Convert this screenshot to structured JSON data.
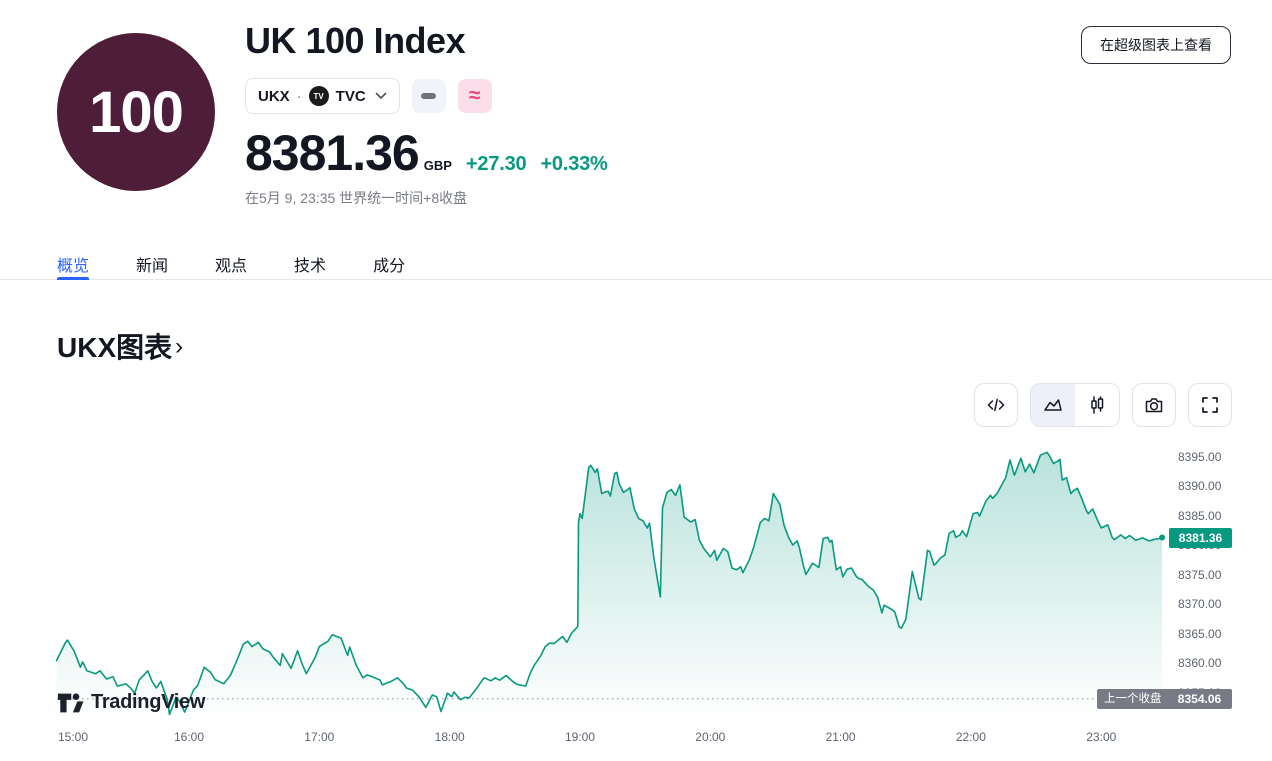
{
  "header": {
    "logo_text": "100",
    "title": "UK 100 Index",
    "symbol": {
      "name": "UKX",
      "dot": "·",
      "exchange_logo": "TV",
      "exchange": "TVC"
    },
    "approx_label": "≈",
    "price": "8381.36",
    "currency": "GBP",
    "change_abs": "+27.30",
    "change_pct": "+0.33%",
    "close_note": "在5月 9, 23:35 世界统一时间+8收盘",
    "superchart_label": "在超级图表上查看"
  },
  "tabs": [
    {
      "label": "概览",
      "active": true
    },
    {
      "label": "新闻",
      "active": false
    },
    {
      "label": "观点",
      "active": false
    },
    {
      "label": "技术",
      "active": false
    },
    {
      "label": "成分",
      "active": false
    }
  ],
  "section": {
    "heading": "UKX图表",
    "chevron": "›"
  },
  "toolbar": {
    "icons": [
      "code-view",
      "area-chart",
      "candlestick-chart",
      "snapshot-camera",
      "fullscreen"
    ]
  },
  "watermark": {
    "label": "TradingView"
  },
  "colors": {
    "green": "#089981",
    "blue": "#2962ff",
    "text_dark": "#131722",
    "text_gray": "#787b86",
    "badge_gray": "#787b86",
    "logo_maroon": "#4e1d3a",
    "chip_gray_bg": "#f0f3fa",
    "chip_pink_bg": "#fbdee9",
    "chip_pink": "#ef437e",
    "border_light": "#e0e3eb"
  },
  "chart_data": {
    "type": "area",
    "symbol": "UKX",
    "title": "UKX图表",
    "x_axis_labels": [
      "15:00",
      "16:00",
      "17:00",
      "18:00",
      "19:00",
      "20:00",
      "21:00",
      "22:00",
      "23:00"
    ],
    "y_axis_labels": [
      "8395.00",
      "8390.00",
      "8385.00",
      "8380.00",
      "8375.00",
      "8370.00",
      "8365.00",
      "8360.00",
      "8355.00"
    ],
    "x_unit": "minutes_after_15:00",
    "y_min_visible": 8349.5,
    "y_max_visible": 8397.0,
    "grid": false,
    "legend": false,
    "last_price": 8381.36,
    "last_price_label": "8381.36",
    "prev_close": 8354.06,
    "prev_close_label": "上一个收盘",
    "prev_close_value_label": "8354.06",
    "series": [
      {
        "name": "UKX",
        "color": "#089981",
        "points": [
          [
            -1,
            8360.5
          ],
          [
            1,
            8362.0
          ],
          [
            3,
            8363.5
          ],
          [
            4,
            8364.0
          ],
          [
            7,
            8362.2
          ],
          [
            10,
            8359.4
          ],
          [
            11,
            8360.3
          ],
          [
            13,
            8358.8
          ],
          [
            17,
            8358.3
          ],
          [
            19,
            8358.8
          ],
          [
            22,
            8357.4
          ],
          [
            25,
            8357.8
          ],
          [
            27,
            8356.2
          ],
          [
            31,
            8356.6
          ],
          [
            33,
            8355.9
          ],
          [
            35,
            8355.0
          ],
          [
            37,
            8357.2
          ],
          [
            41,
            8358.8
          ],
          [
            43,
            8357.0
          ],
          [
            45,
            8355.9
          ],
          [
            47,
            8357.0
          ],
          [
            50,
            8353.9
          ],
          [
            51,
            8351.4
          ],
          [
            54,
            8354.3
          ],
          [
            55,
            8354.0
          ],
          [
            57,
            8352.6
          ],
          [
            58,
            8351.8
          ],
          [
            62,
            8355.5
          ],
          [
            64,
            8356.3
          ],
          [
            67,
            8359.4
          ],
          [
            70,
            8358.5
          ],
          [
            72,
            8357.3
          ],
          [
            76,
            8356.6
          ],
          [
            79,
            8358.0
          ],
          [
            82,
            8360.5
          ],
          [
            85,
            8363.3
          ],
          [
            87,
            8363.8
          ],
          [
            89,
            8362.9
          ],
          [
            92,
            8363.6
          ],
          [
            94,
            8362.5
          ],
          [
            97,
            8362.0
          ],
          [
            99,
            8361.0
          ],
          [
            102,
            8359.7
          ],
          [
            103,
            8361.7
          ],
          [
            107,
            8359.2
          ],
          [
            110,
            8362.2
          ],
          [
            112,
            8360.0
          ],
          [
            114,
            8358.3
          ],
          [
            118,
            8361.0
          ],
          [
            120,
            8362.9
          ],
          [
            124,
            8363.8
          ],
          [
            126,
            8364.9
          ],
          [
            130,
            8364.3
          ],
          [
            133,
            8361.4
          ],
          [
            134,
            8362.8
          ],
          [
            137,
            8359.7
          ],
          [
            140,
            8357.6
          ],
          [
            142,
            8358.1
          ],
          [
            145,
            8357.7
          ],
          [
            148,
            8357.2
          ],
          [
            149,
            8356.4
          ],
          [
            153,
            8357.0
          ],
          [
            156,
            8357.6
          ],
          [
            159,
            8356.5
          ],
          [
            160,
            8355.9
          ],
          [
            163,
            8355.5
          ],
          [
            166,
            8354.3
          ],
          [
            169,
            8352.6
          ],
          [
            171,
            8354.0
          ],
          [
            172,
            8354.7
          ],
          [
            174,
            8354.4
          ],
          [
            176,
            8351.9
          ],
          [
            179,
            8355.0
          ],
          [
            181,
            8354.4
          ],
          [
            182,
            8355.2
          ],
          [
            185,
            8353.9
          ],
          [
            187,
            8354.3
          ],
          [
            189,
            8354.2
          ],
          [
            193,
            8356.1
          ],
          [
            195,
            8357.2
          ],
          [
            196,
            8357.6
          ],
          [
            199,
            8357.1
          ],
          [
            201,
            8357.6
          ],
          [
            203,
            8357.2
          ],
          [
            206,
            8358.0
          ],
          [
            209,
            8357.0
          ],
          [
            211,
            8356.5
          ],
          [
            215,
            8356.2
          ],
          [
            217,
            8358.3
          ],
          [
            219,
            8359.8
          ],
          [
            222,
            8361.4
          ],
          [
            224,
            8362.9
          ],
          [
            226,
            8363.5
          ],
          [
            228,
            8363.4
          ],
          [
            232,
            8364.6
          ],
          [
            234,
            8363.6
          ],
          [
            236,
            8365.1
          ],
          [
            238,
            8365.9
          ],
          [
            239,
            8366.3
          ],
          [
            239.3,
            8384.0
          ],
          [
            240,
            8385.4
          ],
          [
            241,
            8384.6
          ],
          [
            244,
            8393.2
          ],
          [
            245,
            8393.6
          ],
          [
            247,
            8392.4
          ],
          [
            248,
            8393.0
          ],
          [
            250,
            8388.8
          ],
          [
            251,
            8389.0
          ],
          [
            253,
            8389.2
          ],
          [
            254,
            8388.4
          ],
          [
            256,
            8392.2
          ],
          [
            257,
            8392.4
          ],
          [
            258,
            8390.5
          ],
          [
            260,
            8389.0
          ],
          [
            262,
            8389.5
          ],
          [
            263,
            8389.8
          ],
          [
            265,
            8386.2
          ],
          [
            267,
            8384.6
          ],
          [
            269,
            8384.2
          ],
          [
            271,
            8383.0
          ],
          [
            272,
            8383.8
          ],
          [
            274,
            8378.0
          ],
          [
            277,
            8371.3
          ],
          [
            278,
            8386.4
          ],
          [
            280,
            8389.0
          ],
          [
            282,
            8389.5
          ],
          [
            284,
            8388.5
          ],
          [
            286,
            8390.3
          ],
          [
            288,
            8384.8
          ],
          [
            291,
            8384.0
          ],
          [
            293,
            8384.4
          ],
          [
            295,
            8380.9
          ],
          [
            297,
            8379.5
          ],
          [
            300,
            8378.1
          ],
          [
            302,
            8379.2
          ],
          [
            303,
            8377.5
          ],
          [
            306,
            8379.5
          ],
          [
            308,
            8379.0
          ],
          [
            310,
            8376.2
          ],
          [
            312,
            8375.9
          ],
          [
            314,
            8376.4
          ],
          [
            315,
            8375.4
          ],
          [
            318,
            8377.6
          ],
          [
            320,
            8379.7
          ],
          [
            323,
            8383.9
          ],
          [
            325,
            8384.6
          ],
          [
            327,
            8384.2
          ],
          [
            329,
            8388.8
          ],
          [
            331,
            8387.6
          ],
          [
            332,
            8387.0
          ],
          [
            334,
            8383.4
          ],
          [
            336,
            8381.4
          ],
          [
            338,
            8380.1
          ],
          [
            340,
            8380.8
          ],
          [
            341,
            8379.6
          ],
          [
            343,
            8376.4
          ],
          [
            344,
            8375.1
          ],
          [
            347,
            8377.0
          ],
          [
            348,
            8376.8
          ],
          [
            350,
            8376.3
          ],
          [
            352,
            8381.2
          ],
          [
            354,
            8381.4
          ],
          [
            355,
            8380.6
          ],
          [
            356,
            8380.9
          ],
          [
            358,
            8375.9
          ],
          [
            360,
            8376.4
          ],
          [
            361,
            8374.7
          ],
          [
            363,
            8376.0
          ],
          [
            365,
            8376.2
          ],
          [
            367,
            8374.9
          ],
          [
            368,
            8374.5
          ],
          [
            370,
            8374.2
          ],
          [
            373,
            8373.0
          ],
          [
            375,
            8372.5
          ],
          [
            377,
            8371.3
          ],
          [
            379,
            8368.6
          ],
          [
            380,
            8369.9
          ],
          [
            382,
            8369.5
          ],
          [
            384,
            8369.1
          ],
          [
            385,
            8368.7
          ],
          [
            387,
            8366.2
          ],
          [
            388,
            8366.0
          ],
          [
            390,
            8367.5
          ],
          [
            393,
            8375.6
          ],
          [
            396,
            8371.1
          ],
          [
            397,
            8370.8
          ],
          [
            400,
            8379.2
          ],
          [
            401,
            8379.0
          ],
          [
            403,
            8376.7
          ],
          [
            404,
            8377.0
          ],
          [
            406,
            8377.9
          ],
          [
            408,
            8378.4
          ],
          [
            410,
            8382.1
          ],
          [
            412,
            8382.5
          ],
          [
            413,
            8381.4
          ],
          [
            415,
            8381.8
          ],
          [
            416,
            8382.5
          ],
          [
            418,
            8381.5
          ],
          [
            421,
            8385.4
          ],
          [
            423,
            8385.6
          ],
          [
            424,
            8385.0
          ],
          [
            427,
            8387.6
          ],
          [
            429,
            8388.5
          ],
          [
            430,
            8388.0
          ],
          [
            432,
            8388.8
          ],
          [
            433,
            8389.5
          ],
          [
            436,
            8391.5
          ],
          [
            438,
            8394.5
          ],
          [
            440,
            8391.9
          ],
          [
            443,
            8394.8
          ],
          [
            445,
            8392.5
          ],
          [
            447,
            8393.8
          ],
          [
            449,
            8392.3
          ],
          [
            452,
            8395.3
          ],
          [
            455,
            8395.8
          ],
          [
            456,
            8395.3
          ],
          [
            458,
            8393.9
          ],
          [
            460,
            8394.3
          ],
          [
            461,
            8394.6
          ],
          [
            462,
            8391.1
          ],
          [
            464,
            8391.5
          ],
          [
            466,
            8388.8
          ],
          [
            467,
            8389.2
          ],
          [
            469,
            8389.7
          ],
          [
            471,
            8388.0
          ],
          [
            473,
            8386.0
          ],
          [
            474,
            8385.4
          ],
          [
            476,
            8386.2
          ],
          [
            479,
            8383.7
          ],
          [
            480,
            8383.0
          ],
          [
            483,
            8383.5
          ],
          [
            485,
            8381.4
          ],
          [
            486,
            8381.0
          ],
          [
            489,
            8381.8
          ],
          [
            491,
            8381.2
          ],
          [
            493,
            8381.7
          ],
          [
            496,
            8380.9
          ],
          [
            499,
            8381.3
          ],
          [
            502,
            8380.8
          ],
          [
            505,
            8381.1
          ],
          [
            507,
            8381.2
          ],
          [
            508,
            8381.36
          ]
        ]
      }
    ]
  }
}
